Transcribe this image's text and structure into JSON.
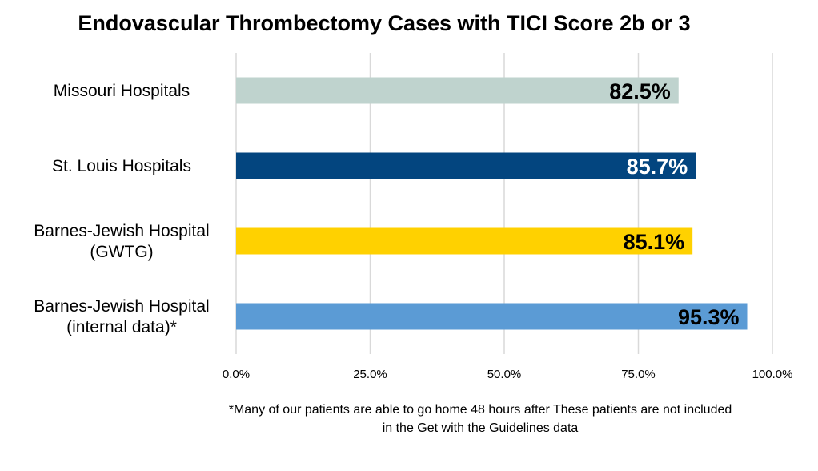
{
  "chart_data": {
    "type": "bar",
    "orientation": "horizontal",
    "title": "Endovascular Thrombectomy Cases with TICI Score 2b or 3",
    "categories": [
      [
        "Missouri Hospitals"
      ],
      [
        "St. Louis Hospitals"
      ],
      [
        "Barnes-Jewish Hospital",
        "(GWTG)"
      ],
      [
        "Barnes-Jewish Hospital",
        "(internal data)*"
      ]
    ],
    "values": [
      82.5,
      85.7,
      85.1,
      95.3
    ],
    "value_labels": [
      "82.5%",
      "85.7%",
      "85.1%",
      "95.3%"
    ],
    "bar_colors": [
      "#bfd3ce",
      "#03457f",
      "#ffd100",
      "#5b9bd5"
    ],
    "label_colors": [
      "#000000",
      "#ffffff",
      "#000000",
      "#000000"
    ],
    "xlim": [
      0,
      100
    ],
    "xticks": [
      0,
      25,
      50,
      75,
      100
    ],
    "xtick_labels": [
      "0.0%",
      "25.0%",
      "50.0%",
      "75.0%",
      "100.0%"
    ],
    "grid": true,
    "xlabel": "",
    "ylabel": ""
  },
  "footnote": {
    "line1": "*Many of our patients are able to go home 48 hours after These patients are not included",
    "line2": "in the Get with the Guidelines data"
  }
}
